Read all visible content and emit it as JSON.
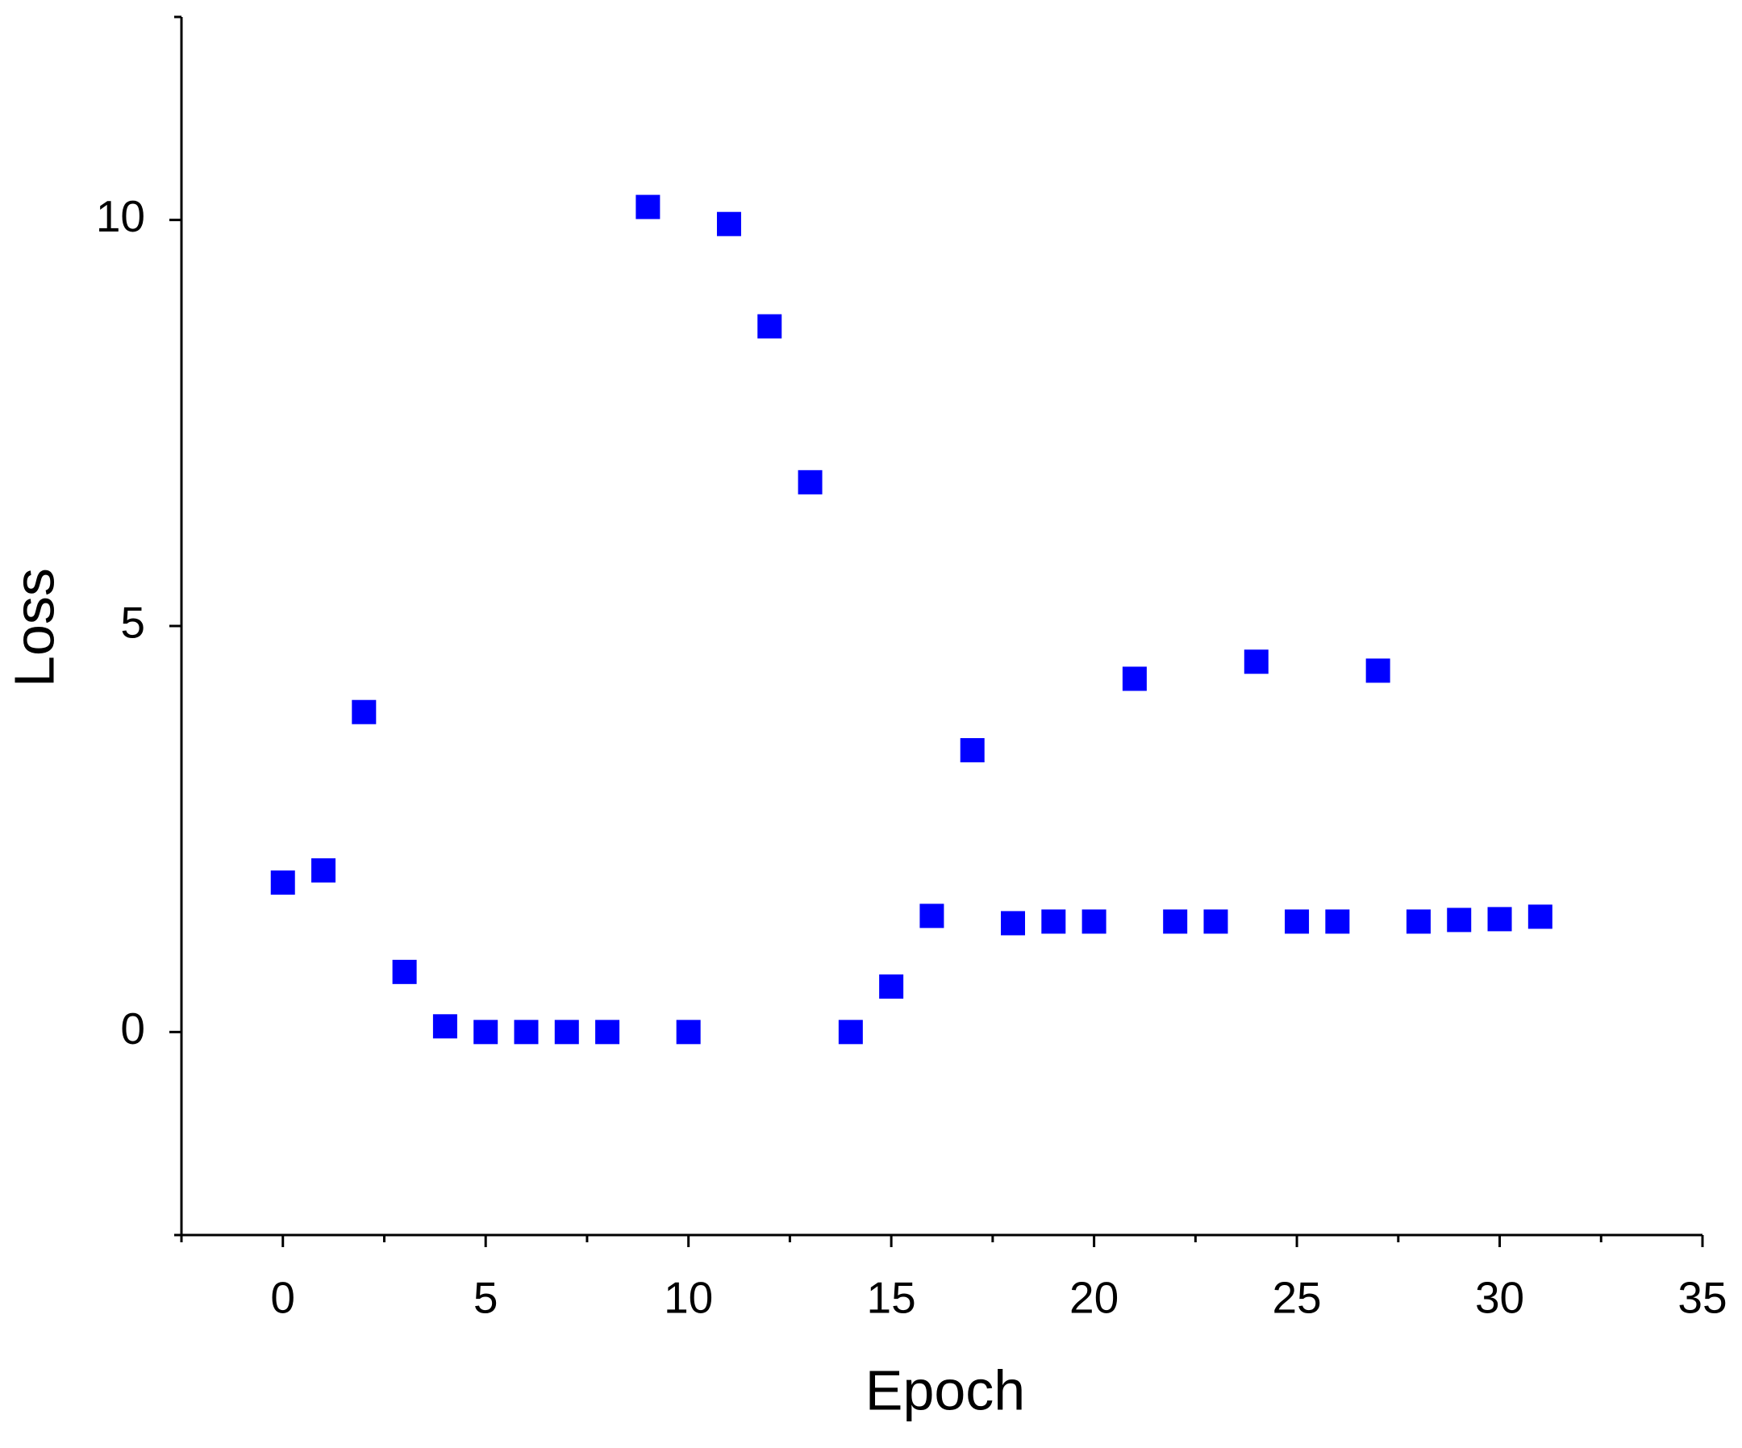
{
  "chart_data": {
    "type": "scatter",
    "x_label": "Epoch",
    "y_label": "Loss",
    "x": [
      0,
      1,
      2,
      3,
      4,
      5,
      6,
      7,
      8,
      9,
      10,
      11,
      12,
      13,
      14,
      15,
      16,
      17,
      18,
      19,
      20,
      21,
      22,
      23,
      24,
      25,
      26,
      27,
      28,
      29,
      30,
      31
    ],
    "series": [
      {
        "color": "#0000ff",
        "marker": "square",
        "values": [
          1.84,
          1.99,
          3.94,
          0.74,
          0.07,
          0,
          0,
          0,
          0,
          10.16,
          0,
          9.95,
          8.69,
          6.77,
          0,
          0.56,
          1.43,
          3.47,
          1.34,
          1.36,
          1.36,
          4.35,
          1.36,
          1.36,
          4.56,
          1.36,
          1.36,
          4.45,
          1.36,
          1.38,
          1.39,
          1.42
        ]
      }
    ],
    "xlim": [
      -2.5,
      35
    ],
    "xticks": [
      0,
      5,
      10,
      15,
      20,
      25,
      30,
      35
    ],
    "xminorticks": [
      -2.5,
      2.5,
      7.5,
      12.5,
      17.5,
      22.5,
      27.5,
      32.5
    ],
    "ylim": [
      -2.5,
      12.5
    ],
    "yticks": [
      0,
      5,
      10
    ],
    "yminorticks": [
      -2.5,
      12.5
    ],
    "grid": false
  }
}
